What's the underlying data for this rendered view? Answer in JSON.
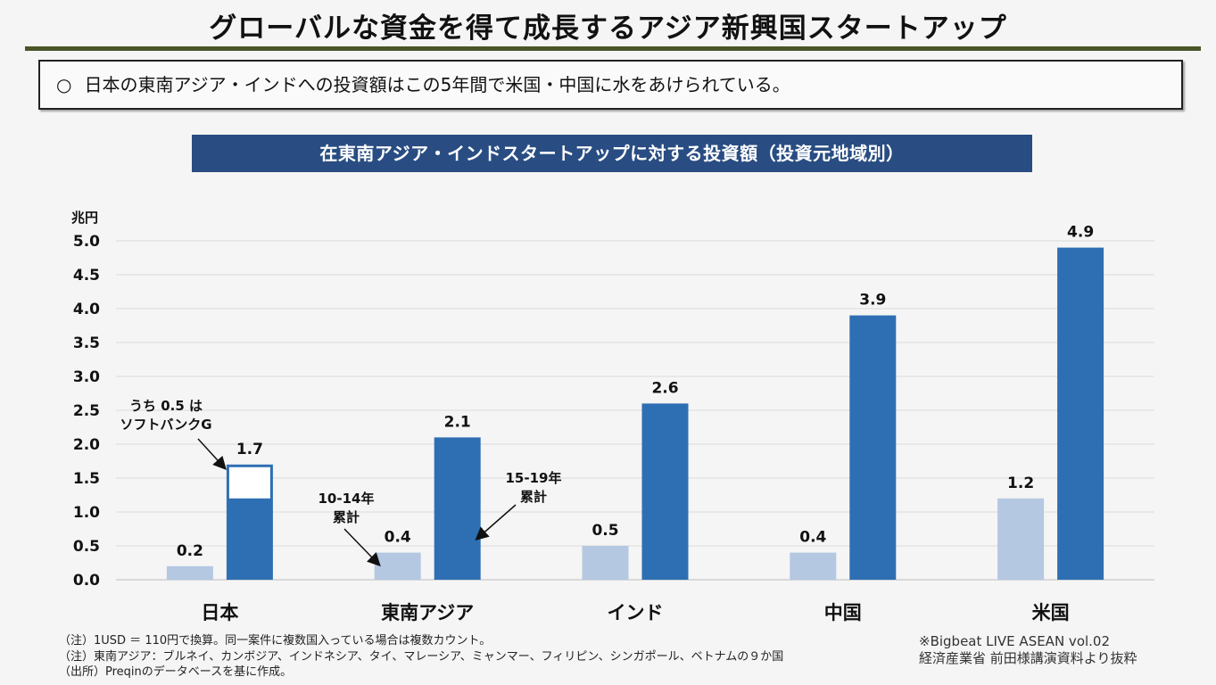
{
  "page": {
    "title": "グローバルな資金を得て成長するアジア新興国スタートアップ",
    "summary_bullet": "○",
    "summary_text": "日本の東南アジア・インドへの投資額はこの5年間で米国・中国に水をあけられている。",
    "notes": [
      "（注）1USD ＝ 110円で換算。同一案件に複数国入っている場合は複数カウント。",
      "（注）東南アジア：ブルネイ、カンボジア、インドネシア、タイ、マレーシア、ミャンマー、フィリピン、シンガポール、ベトナムの９か国",
      "（出所）Preqinのデータベースを基に作成。"
    ],
    "credit_line1": "※Bigbeat LIVE ASEAN vol.02",
    "credit_line2": "経済産業省 前田様講演資料より抜粋"
  },
  "chart_data": {
    "type": "bar",
    "title": "在東南アジア・インドスタートアップに対する投資額（投資元地域別）",
    "ylabel": "兆円",
    "ylim": [
      0,
      5.0
    ],
    "yticks": [
      "0.0",
      "0.5",
      "1.0",
      "1.5",
      "2.0",
      "2.5",
      "3.0",
      "3.5",
      "4.0",
      "4.5",
      "5.0"
    ],
    "grid": true,
    "categories": [
      "日本",
      "東南アジア",
      "インド",
      "中国",
      "米国"
    ],
    "series": [
      {
        "name": "10-14年累計",
        "color": "#b4c8e2",
        "values": [
          0.2,
          0.4,
          0.5,
          0.4,
          1.2
        ]
      },
      {
        "name": "15-19年累計",
        "color": "#2e6fb3",
        "values": [
          1.7,
          2.1,
          2.6,
          3.9,
          4.9
        ]
      }
    ],
    "data_labels": [
      [
        "0.2",
        "0.4",
        "0.5",
        "0.4",
        "1.2"
      ],
      [
        "1.7",
        "2.1",
        "2.6",
        "3.9",
        "4.9"
      ]
    ],
    "softbank_portion": 0.5,
    "annotations": {
      "softbank_line1": "うち 0.5 は",
      "softbank_line2": "ソフトバンクG",
      "series1_line1": "10-14年",
      "series1_line2": "累計",
      "series2_line1": "15-19年",
      "series2_line2": "累計"
    }
  }
}
